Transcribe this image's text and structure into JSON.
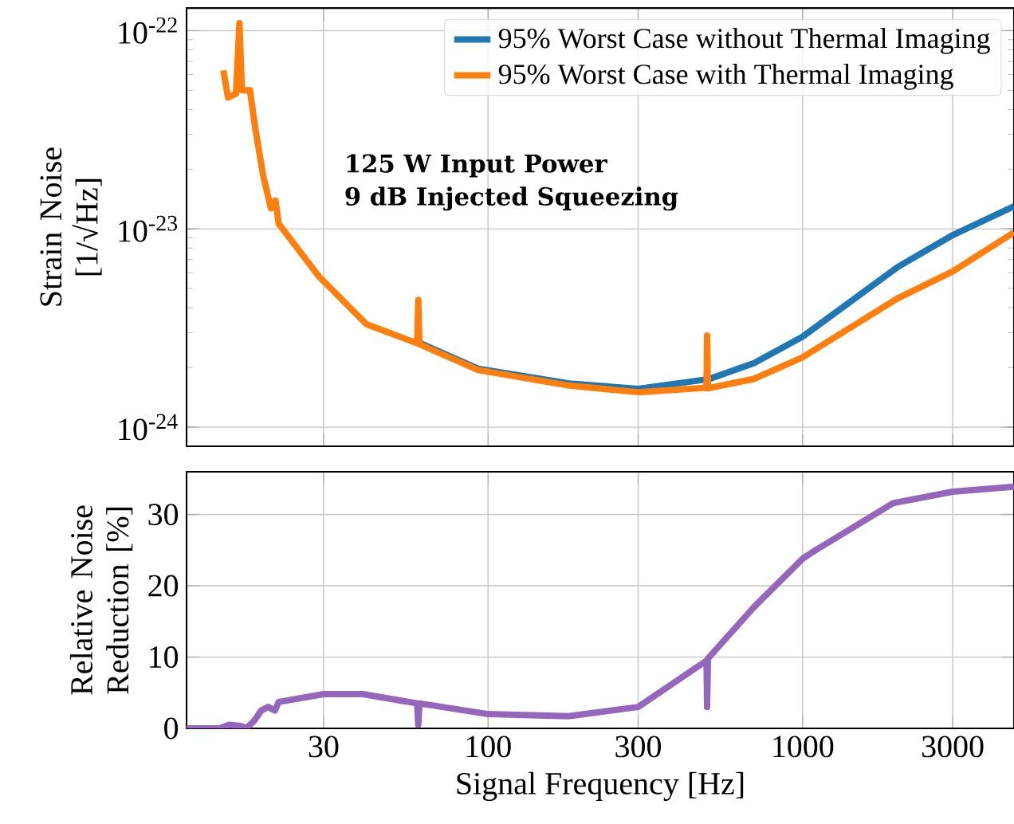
{
  "chart_data": [
    {
      "type": "line",
      "ylabel": "Strain Noise [1/√Hz]",
      "log": "xy",
      "grid": true,
      "legend": "top right",
      "tick_labels": "y",
      "xlim": [
        11,
        4700
      ],
      "ylim": [
        8e-25,
        1.3e-22
      ],
      "xticks": [
        30,
        100,
        300,
        1000,
        3000
      ],
      "yticks": [
        {
          "value": 1e-24,
          "label": "10$^{-24}$"
        },
        {
          "value": 1e-23,
          "label": "10$^{-23}$"
        },
        {
          "value": 1e-22,
          "label": "10$^{-22}$"
        }
      ],
      "annotations": [
        "**125 W Input Power**",
        "**9 dB Injected Squeezing**"
      ],
      "series": [
        {
          "name": "95% Worst Case without Thermal Imaging",
          "color": "#1f77b4",
          "x": [
            60.5,
            93,
            181,
            300,
            495,
            500,
            700,
            1000,
            2000,
            3000,
            4700
          ],
          "values": [
            2.66e-24,
            1.97e-24,
            1.66e-24,
            1.56e-24,
            1.74e-24,
            1.74e-24,
            2.1e-24,
            2.86e-24,
            6.4e-24,
            9.3e-24,
            1.3e-23
          ]
        },
        {
          "name": "95% Worst Case with Thermal Imaging",
          "color": "#ff7f0e",
          "x": [
            14.4,
            14.9,
            15.8,
            16.2,
            16.5,
            17.5,
            18.2,
            19.3,
            20.4,
            21.1,
            21.6,
            29,
            41,
            59.5,
            60,
            60.5,
            93,
            181,
            300,
            495,
            497,
            500,
            700,
            1000,
            2000,
            3000,
            4700
          ],
          "values": [
            6.3e-23,
            4.6e-23,
            4.8e-23,
            1.09e-22,
            5e-23,
            5e-23,
            3.2e-23,
            1.84e-23,
            1.27e-23,
            1.39e-23,
            1.06e-23,
            5.75e-24,
            3.31e-24,
            2.65e-24,
            4.37e-24,
            2.62e-24,
            1.94e-24,
            1.62e-24,
            1.5e-24,
            1.58e-24,
            2.9e-24,
            1.57e-24,
            1.75e-24,
            2.25e-24,
            4.45e-24,
            6.1e-24,
            9.6e-24
          ]
        }
      ]
    },
    {
      "type": "line",
      "xlabel": "Signal Frequency [Hz]",
      "ylabel": "Relative Noise Reduction [%]",
      "log": "x",
      "grid": true,
      "xlim": [
        11,
        4700
      ],
      "ylim": [
        0,
        36
      ],
      "xticks": [
        30,
        100,
        300,
        1000,
        3000
      ],
      "yticks": [
        0,
        10,
        20,
        30
      ],
      "series": [
        {
          "color": "#9467bd",
          "x": [
            11,
            14,
            15,
            16.5,
            17,
            18,
            19,
            20,
            21,
            21.6,
            30,
            40,
            59.5,
            60,
            60.5,
            100,
            180,
            300,
            495,
            497,
            500,
            700,
            1000,
            1100,
            1940,
            3000,
            4700
          ],
          "values": [
            0,
            0,
            0.5,
            0.3,
            0,
            1,
            2.5,
            3,
            2.5,
            3.7,
            4.8,
            4.8,
            3.5,
            0.5,
            3.5,
            2.0,
            1.7,
            3,
            9.5,
            3,
            9.8,
            17,
            23.8,
            25,
            31.6,
            33.2,
            33.9
          ]
        }
      ]
    }
  ]
}
